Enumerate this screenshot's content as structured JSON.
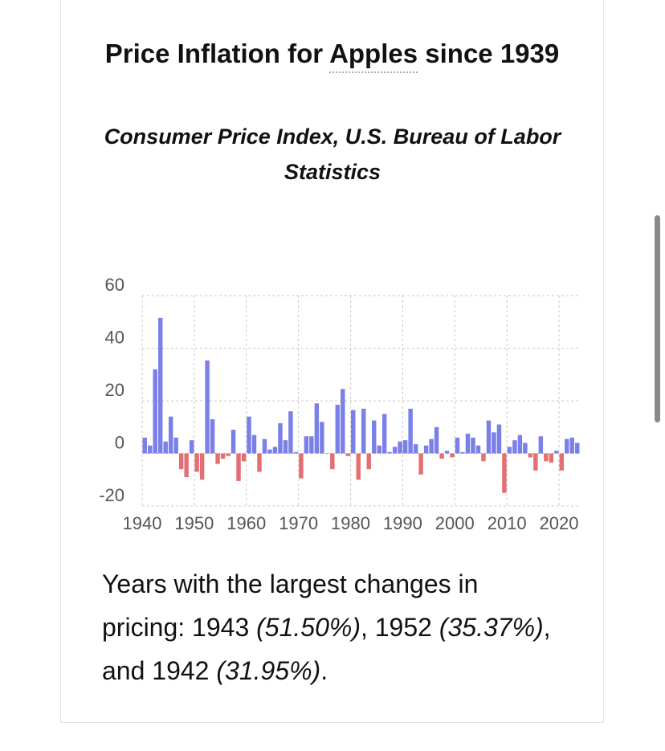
{
  "header": {
    "title": [
      {
        "text": "Price Inflation for ",
        "underline": false
      },
      {
        "text": "Apples",
        "underline": true
      },
      {
        "text": " since 1939",
        "underline": false
      }
    ]
  },
  "chart_data": {
    "type": "bar",
    "title": "Consumer Price Index, U.S. Bureau of Labor Statistics",
    "x": [
      1940,
      1941,
      1942,
      1943,
      1944,
      1945,
      1946,
      1947,
      1948,
      1949,
      1950,
      1951,
      1952,
      1953,
      1954,
      1955,
      1956,
      1957,
      1958,
      1959,
      1960,
      1961,
      1962,
      1963,
      1964,
      1965,
      1966,
      1967,
      1968,
      1969,
      1970,
      1971,
      1972,
      1973,
      1974,
      1975,
      1976,
      1977,
      1978,
      1979,
      1980,
      1981,
      1982,
      1983,
      1984,
      1985,
      1986,
      1987,
      1988,
      1989,
      1990,
      1991,
      1992,
      1993,
      1994,
      1995,
      1996,
      1997,
      1998,
      1999,
      2000,
      2001,
      2002,
      2003,
      2004,
      2005,
      2006,
      2007,
      2008,
      2009,
      2010,
      2011,
      2012,
      2013,
      2014,
      2015,
      2016,
      2017,
      2018,
      2019,
      2020,
      2021,
      2022,
      2023
    ],
    "values": [
      6,
      3,
      31.95,
      51.5,
      4.5,
      14,
      6,
      -6,
      -9,
      5,
      -7,
      -10,
      35.37,
      13,
      -4,
      -2,
      -1,
      9,
      -10.5,
      -3,
      14,
      7,
      -7,
      5.5,
      1.5,
      2.5,
      11.5,
      5,
      16,
      0.5,
      -9.5,
      6.5,
      6.5,
      19,
      12,
      0,
      -6,
      18.5,
      24.5,
      -1,
      16.5,
      -10,
      17,
      -6,
      12.5,
      3,
      15,
      0.5,
      2.5,
      4.5,
      5,
      17,
      3.5,
      -8,
      3,
      5.5,
      10,
      -2,
      1,
      -1.5,
      6,
      0.5,
      7.5,
      6,
      3,
      -3,
      12.5,
      8,
      11,
      -15,
      2.5,
      5,
      7,
      4,
      -1.5,
      -6.5,
      6.5,
      -3,
      -3.5,
      1,
      -6.5,
      5.5,
      6,
      4
    ],
    "positive_color": "#7b7fe8",
    "negative_color": "#e46f72",
    "xlim": [
      1940,
      2024
    ],
    "xticks": [
      1940,
      1950,
      1960,
      1970,
      1980,
      1990,
      2000,
      2010,
      2020
    ],
    "ylim": [
      -20,
      60
    ],
    "yticks": [
      -20,
      0,
      20,
      40,
      60
    ],
    "grid": true
  },
  "summary": [
    {
      "text": "Years with the largest changes in pricing: 1943 ",
      "italic": false
    },
    {
      "text": "(51.50%)",
      "italic": true
    },
    {
      "text": ", 1952 ",
      "italic": false
    },
    {
      "text": "(35.37%)",
      "italic": true
    },
    {
      "text": ", and 1942 ",
      "italic": false
    },
    {
      "text": "(31.95%)",
      "italic": true
    },
    {
      "text": ".",
      "italic": false
    }
  ]
}
